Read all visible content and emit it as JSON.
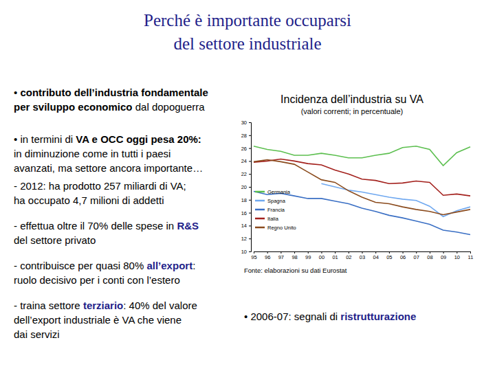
{
  "title": [
    "Perché è importante occuparsi",
    "del settore industriale"
  ],
  "bullets": [
    [
      [
        {
          "text": "• "
        },
        {
          "text": "contributo dell’industria fondamentale",
          "bold": true
        }
      ],
      [
        {
          "text": "per sviluppo economico",
          "bold": true
        },
        {
          "text": " dal dopoguerra"
        }
      ]
    ],
    [
      [
        {
          "text": "• in termini di "
        },
        {
          "text": "VA e OCC oggi pesa 20%:",
          "bold": true
        }
      ],
      [
        {
          "text": "in diminuzione come in tutti i paesi"
        }
      ],
      [
        {
          "text": "avanzati, ma settore ancora importante…"
        }
      ]
    ],
    [
      [
        {
          "text": "- 2012: ha prodotto 257 miliardi di VA;"
        }
      ],
      [
        {
          "text": "ha occupato 4,7 milioni di addetti"
        }
      ]
    ],
    [
      [
        {
          "text": "- effettua oltre il 70% delle spese in "
        },
        {
          "text": "R&S",
          "bold": true,
          "color": "#1f1f8a"
        }
      ],
      [
        {
          "text": "del settore privato"
        }
      ]
    ],
    [
      [
        {
          "text": "- contribuisce per quasi 80% "
        },
        {
          "text": "all’export",
          "bold": true,
          "color": "#1f1f8a"
        },
        {
          "text": ":"
        }
      ],
      [
        {
          "text": "ruolo decisivo per i conti con l’estero"
        }
      ]
    ],
    [
      [
        {
          "text": "- traina settore "
        },
        {
          "text": "terziario",
          "bold": true,
          "color": "#1f1f8a"
        },
        {
          "text": ": 40% del valore"
        }
      ],
      [
        {
          "text": "dell’export industriale è VA che viene"
        }
      ],
      [
        {
          "text": "dai servizi"
        }
      ]
    ]
  ],
  "chart_data": {
    "type": "line",
    "title": "Incidenza dell’industria su VA",
    "subtitle": "(valori correnti; in percentuale)",
    "categories": [
      "95",
      "96",
      "97",
      "98",
      "99",
      "00",
      "01",
      "02",
      "03",
      "04",
      "05",
      "06",
      "07",
      "08",
      "09",
      "10",
      "11"
    ],
    "series": [
      {
        "name": "Germania",
        "color": "#5cbf4f",
        "values": [
          26.3,
          25.8,
          25.5,
          24.9,
          24.9,
          25.2,
          24.9,
          24.5,
          24.5,
          24.9,
          25.2,
          26.1,
          26.3,
          25.8,
          23.3,
          25.3,
          26.2
        ]
      },
      {
        "name": "Spagna",
        "color": "#6fa8f0",
        "values": [
          null,
          null,
          null,
          null,
          null,
          20.5,
          20.0,
          19.5,
          19.2,
          18.8,
          18.4,
          18.1,
          17.9,
          17.0,
          15.4,
          16.3,
          16.9
        ]
      },
      {
        "name": "Francia",
        "color": "#3a6fc4",
        "values": [
          19.3,
          18.8,
          19.0,
          18.6,
          18.2,
          18.2,
          17.8,
          17.4,
          16.7,
          16.2,
          15.6,
          15.2,
          14.7,
          14.2,
          13.3,
          13.0,
          12.6
        ]
      },
      {
        "name": "Italia",
        "color": "#a3201c",
        "values": [
          23.8,
          24.0,
          24.3,
          24.0,
          23.6,
          23.4,
          22.6,
          22.0,
          21.2,
          21.0,
          20.5,
          20.6,
          20.9,
          20.7,
          18.7,
          18.9,
          18.6
        ]
      },
      {
        "name": "Regno Unito",
        "color": "#8a4a1c",
        "values": [
          23.9,
          24.2,
          23.9,
          23.5,
          22.3,
          21.1,
          20.7,
          19.4,
          18.4,
          17.6,
          17.4,
          16.9,
          16.5,
          16.2,
          15.7,
          16.1,
          16.5
        ]
      }
    ],
    "ylim": [
      10,
      30
    ],
    "yticks": [
      10,
      12,
      14,
      16,
      18,
      20,
      22,
      24,
      26,
      28,
      30
    ],
    "grid": false,
    "legend": "lower left"
  },
  "source": "Fonte: elaborazioni su dati Eurostat",
  "note": [
    {
      "text": "• 2006-07: segnali di "
    },
    {
      "text": "ristrutturazione",
      "bold": true,
      "color": "#1f1f8a"
    }
  ]
}
